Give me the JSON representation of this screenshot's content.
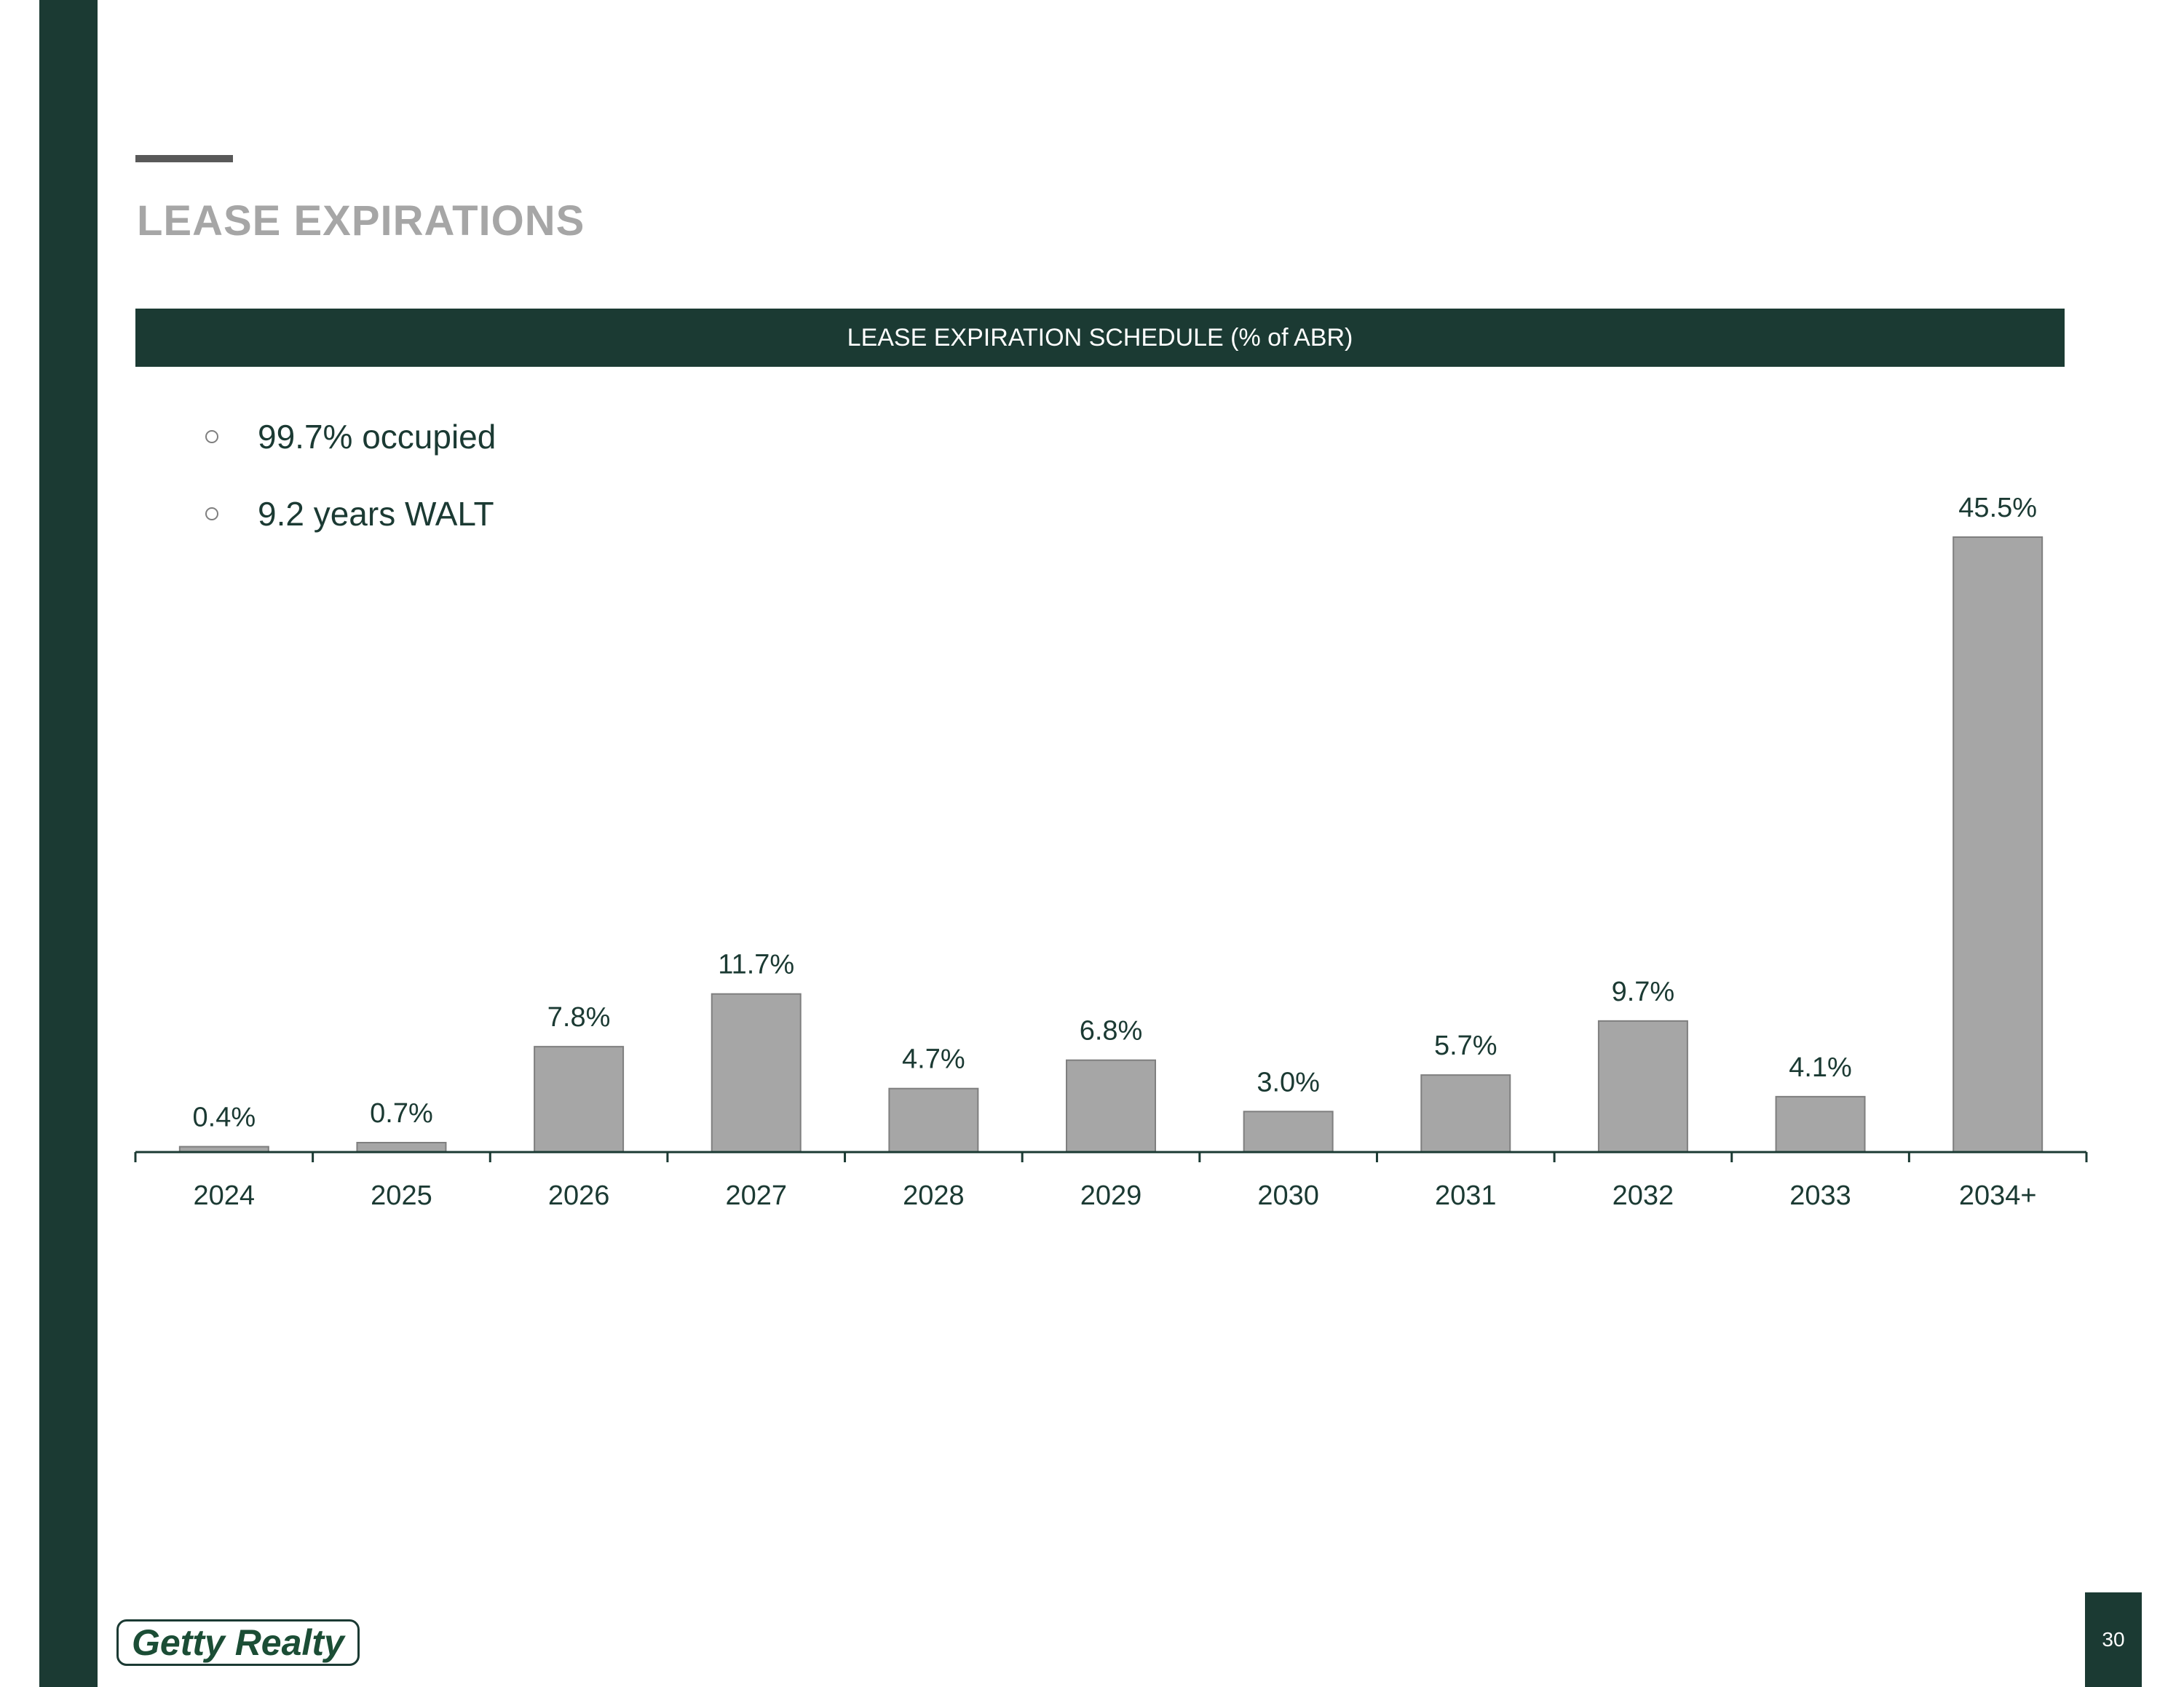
{
  "page": {
    "title": "LEASE EXPIRATIONS",
    "chart_header": "LEASE EXPIRATION SCHEDULE (% of ABR)",
    "bullets": [
      "99.7% occupied",
      "9.2 years WALT"
    ],
    "logo_text": "Getty Realty",
    "page_number": "30"
  },
  "colors": {
    "brand_green": "#1b3a33",
    "bar_fill": "#a6a6a6",
    "bar_stroke": "#7f7f7f",
    "title_gray": "#a6a6a6",
    "axis": "#1b3a33",
    "label": "#1b3a33"
  },
  "chart_data": {
    "type": "bar",
    "title": "LEASE EXPIRATION SCHEDULE (% of ABR)",
    "categories": [
      "2024",
      "2025",
      "2026",
      "2027",
      "2028",
      "2029",
      "2030",
      "2031",
      "2032",
      "2033",
      "2034+"
    ],
    "values": [
      0.4,
      0.7,
      7.8,
      11.7,
      4.7,
      6.8,
      3.0,
      5.7,
      9.7,
      4.1,
      45.5
    ],
    "data_labels": [
      "0.4%",
      "0.7%",
      "7.8%",
      "11.7%",
      "4.7%",
      "6.8%",
      "3.0%",
      "5.7%",
      "9.7%",
      "4.1%",
      "45.5%"
    ],
    "xlabel": "",
    "ylabel": "",
    "ylim": [
      0,
      45.5
    ],
    "grid": false,
    "y_axis_visible": false
  }
}
